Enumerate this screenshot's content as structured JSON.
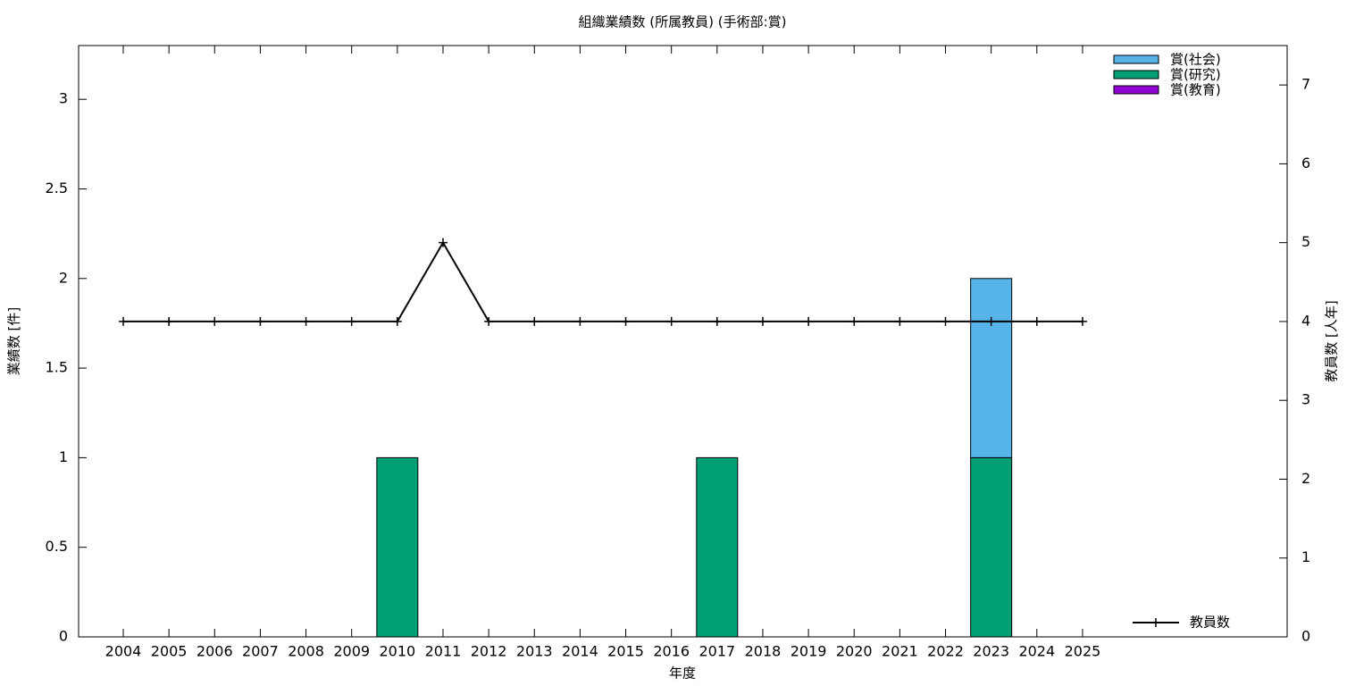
{
  "chart_data": {
    "type": "bar",
    "title": "組織業績数 (所属教員) (手術部:賞)",
    "x_label": "年度",
    "y_label": "業績数 [件]",
    "y2_label": "教員数 [人年]",
    "categories": [
      "2004",
      "2005",
      "2006",
      "2007",
      "2008",
      "2009",
      "2010",
      "2011",
      "2012",
      "2013",
      "2014",
      "2015",
      "2016",
      "2017",
      "2018",
      "2019",
      "2020",
      "2021",
      "2022",
      "2023",
      "2024",
      "2025"
    ],
    "stacked": true,
    "series": [
      {
        "name": "賞(社会)",
        "color": "#56b4e9",
        "values": [
          0,
          0,
          0,
          0,
          0,
          0,
          0,
          0,
          0,
          0,
          0,
          0,
          0,
          0,
          0,
          0,
          0,
          0,
          0,
          1,
          0,
          0
        ]
      },
      {
        "name": "賞(研究)",
        "color": "#009e73",
        "values": [
          0,
          0,
          0,
          0,
          0,
          0,
          1,
          0,
          0,
          0,
          0,
          0,
          0,
          1,
          0,
          0,
          0,
          0,
          0,
          1,
          0,
          0
        ]
      },
      {
        "name": "賞(教育)",
        "color": "#9400d3",
        "values": [
          0,
          0,
          0,
          0,
          0,
          0,
          0,
          0,
          0,
          0,
          0,
          0,
          0,
          0,
          0,
          0,
          0,
          0,
          0,
          0,
          0,
          0
        ]
      },
      {
        "name": "教員数",
        "color": "#000000",
        "type": "line",
        "axis": "y2",
        "values": [
          4,
          4,
          4,
          4,
          4,
          4,
          4,
          5,
          4,
          4,
          4,
          4,
          4,
          4,
          4,
          4,
          4,
          4,
          4,
          4,
          4,
          4
        ]
      }
    ],
    "ylim": [
      0,
      3.3
    ],
    "yticks": [
      0,
      0.5,
      1,
      1.5,
      2,
      2.5,
      3
    ],
    "y2lim": [
      0,
      7.5
    ],
    "y2ticks": [
      0,
      1,
      2,
      3,
      4,
      5,
      6,
      7
    ],
    "grid": false
  }
}
